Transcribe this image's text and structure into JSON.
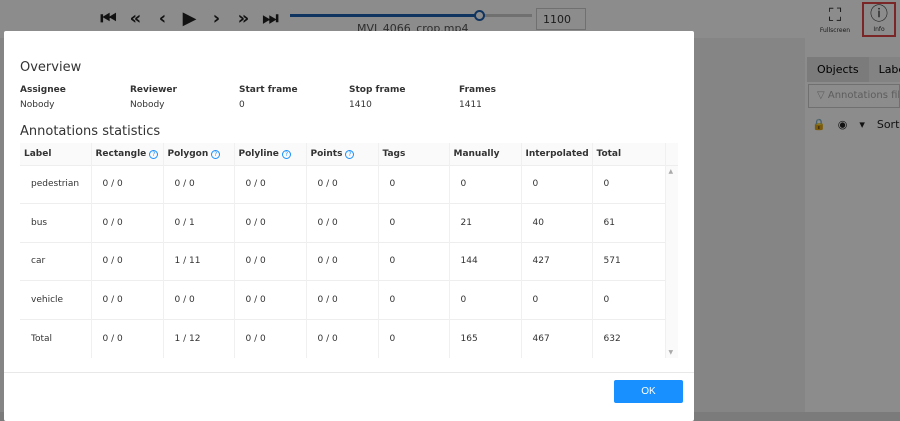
{
  "player": {
    "buttons": [
      "first",
      "fast-backward",
      "previous",
      "play",
      "next",
      "fast-forward",
      "last"
    ],
    "frame": "1100",
    "progress": 0.78,
    "filename": "MVI_4066_crop.mp4"
  },
  "topright": {
    "fullscreen": "Fullscreen",
    "info": "Info"
  },
  "side": {
    "tabs": [
      "Objects",
      "Labels"
    ],
    "filter_placeholder": "Annotations filter",
    "sort": "Sort"
  },
  "modal": {
    "overview_title": "Overview",
    "overview": [
      {
        "label": "Assignee",
        "value": "Nobody"
      },
      {
        "label": "Reviewer",
        "value": "Nobody"
      },
      {
        "label": "Start frame",
        "value": "0"
      },
      {
        "label": "Stop frame",
        "value": "1410"
      },
      {
        "label": "Frames",
        "value": "1411"
      }
    ],
    "stats_title": "Annotations statistics",
    "columns": [
      "Label",
      "Rectangle",
      "Polygon",
      "Polyline",
      "Points",
      "Tags",
      "Manually",
      "Interpolated",
      "Total"
    ],
    "rows": [
      [
        "pedestrian",
        "0 / 0",
        "0 / 0",
        "0 / 0",
        "0 / 0",
        "0",
        "0",
        "0",
        "0"
      ],
      [
        "bus",
        "0 / 0",
        "0 / 1",
        "0 / 0",
        "0 / 0",
        "0",
        "21",
        "40",
        "61"
      ],
      [
        "car",
        "0 / 0",
        "1 / 11",
        "0 / 0",
        "0 / 0",
        "0",
        "144",
        "427",
        "571"
      ],
      [
        "vehicle",
        "0 / 0",
        "0 / 0",
        "0 / 0",
        "0 / 0",
        "0",
        "0",
        "0",
        "0"
      ],
      [
        "Total",
        "0 / 0",
        "1 / 12",
        "0 / 0",
        "0 / 0",
        "0",
        "165",
        "467",
        "632"
      ]
    ],
    "ok": "OK"
  }
}
